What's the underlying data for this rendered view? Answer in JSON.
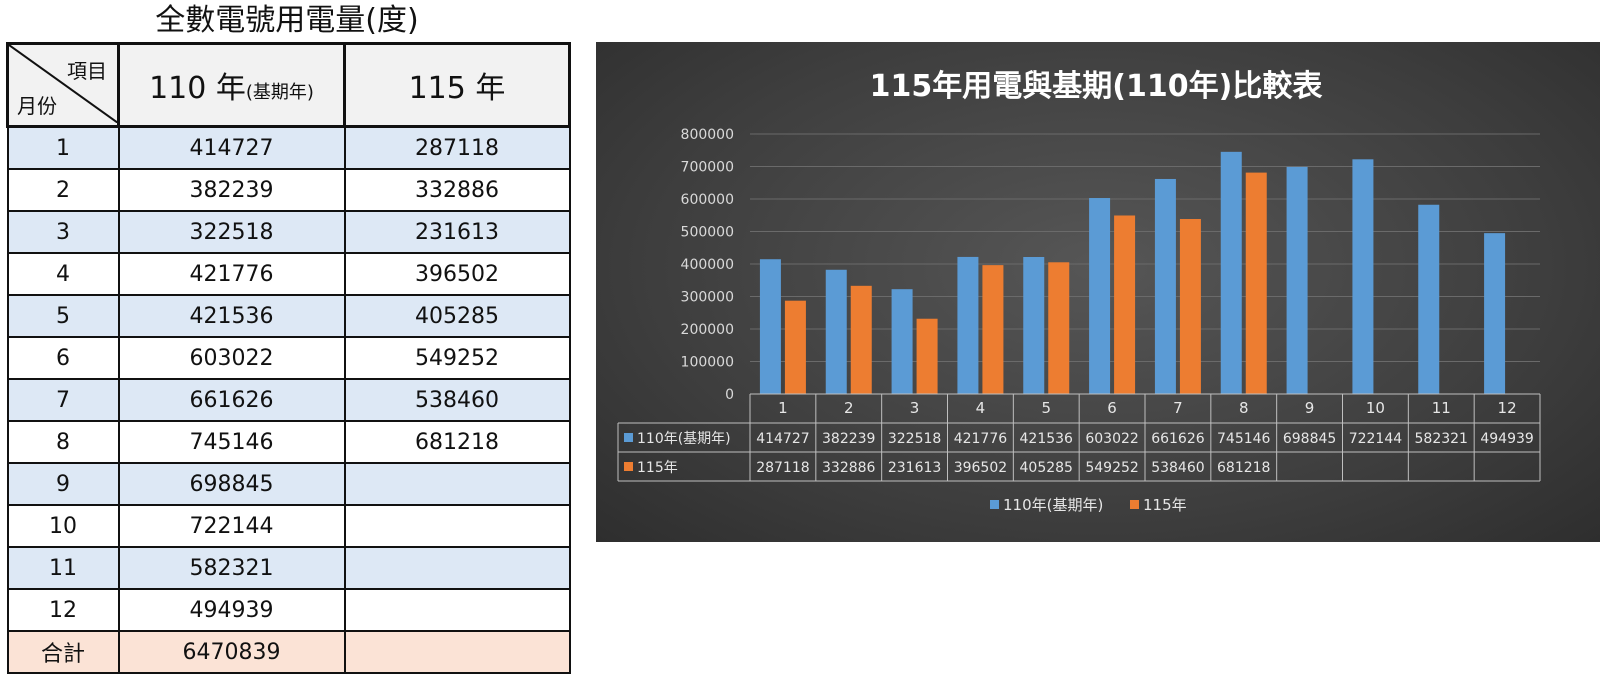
{
  "table": {
    "title": "全數電號用電量(度)",
    "header_item": "項目",
    "header_month": "月份",
    "col_base_year": "110 年",
    "col_base_note": "(基期年)",
    "col_current": "115 年",
    "rows": [
      {
        "month": "1",
        "base": "414727",
        "current": "287118"
      },
      {
        "month": "2",
        "base": "382239",
        "current": "332886"
      },
      {
        "month": "3",
        "base": "322518",
        "current": "231613"
      },
      {
        "month": "4",
        "base": "421776",
        "current": "396502"
      },
      {
        "month": "5",
        "base": "421536",
        "current": "405285"
      },
      {
        "month": "6",
        "base": "603022",
        "current": "549252"
      },
      {
        "month": "7",
        "base": "661626",
        "current": "538460"
      },
      {
        "month": "8",
        "base": "745146",
        "current": "681218"
      },
      {
        "month": "9",
        "base": "698845",
        "current": ""
      },
      {
        "month": "10",
        "base": "722144",
        "current": ""
      },
      {
        "month": "11",
        "base": "582321",
        "current": ""
      },
      {
        "month": "12",
        "base": "494939",
        "current": ""
      }
    ],
    "total_label": "合計",
    "total_base": "6470839",
    "total_current": ""
  },
  "colors": {
    "base": "#5b9bd5",
    "current": "#ed7d31",
    "row_shade": "#dde8f5",
    "total_shade": "#fbe3d6"
  },
  "chart_data": {
    "type": "bar",
    "title": "115年用電與基期(110年)比較表",
    "categories": [
      "1",
      "2",
      "3",
      "4",
      "5",
      "6",
      "7",
      "8",
      "9",
      "10",
      "11",
      "12"
    ],
    "series": [
      {
        "name": "110年(基期年)",
        "values": [
          414727,
          382239,
          322518,
          421776,
          421536,
          603022,
          661626,
          745146,
          698845,
          722144,
          582321,
          494939
        ]
      },
      {
        "name": "115年",
        "values": [
          287118,
          332886,
          231613,
          396502,
          405285,
          549252,
          538460,
          681218,
          null,
          null,
          null,
          null
        ]
      }
    ],
    "ylim": [
      0,
      800000
    ],
    "yticks": [
      "0",
      "100000",
      "200000",
      "300000",
      "400000",
      "500000",
      "600000",
      "700000",
      "800000"
    ],
    "grid": true,
    "legend": "bottom",
    "data_table": true
  }
}
